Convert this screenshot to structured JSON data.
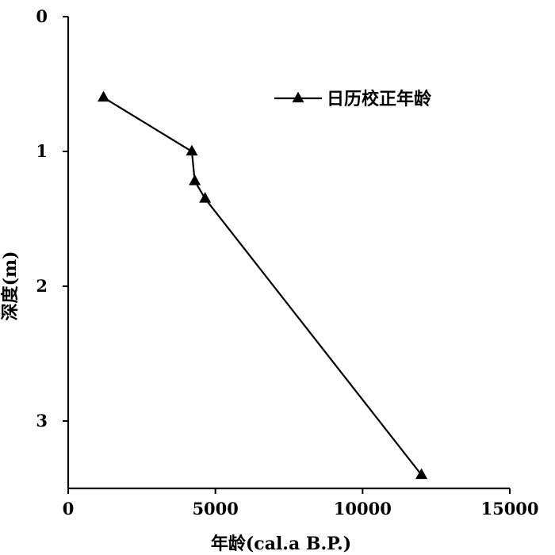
{
  "chart_data": {
    "type": "line",
    "title": "",
    "xlabel": "年龄(cal.a B.P.)",
    "ylabel": "深度(m)",
    "xlim": [
      0,
      15000
    ],
    "ylim": [
      0,
      3.5
    ],
    "y_inverted": true,
    "x_axis_position": "bottom",
    "grid": false,
    "legend": {
      "position": "top-right"
    },
    "x_ticks": [
      0,
      5000,
      10000,
      15000
    ],
    "y_ticks": [
      0,
      1,
      2,
      3
    ],
    "series": [
      {
        "name": "日历校正年龄",
        "marker": "triangle",
        "color": "#000000",
        "points": [
          {
            "x": 1200,
            "y": 0.6
          },
          {
            "x": 4200,
            "y": 1.0
          },
          {
            "x": 4300,
            "y": 1.22
          },
          {
            "x": 4650,
            "y": 1.35
          },
          {
            "x": 12000,
            "y": 3.4
          }
        ]
      }
    ]
  }
}
